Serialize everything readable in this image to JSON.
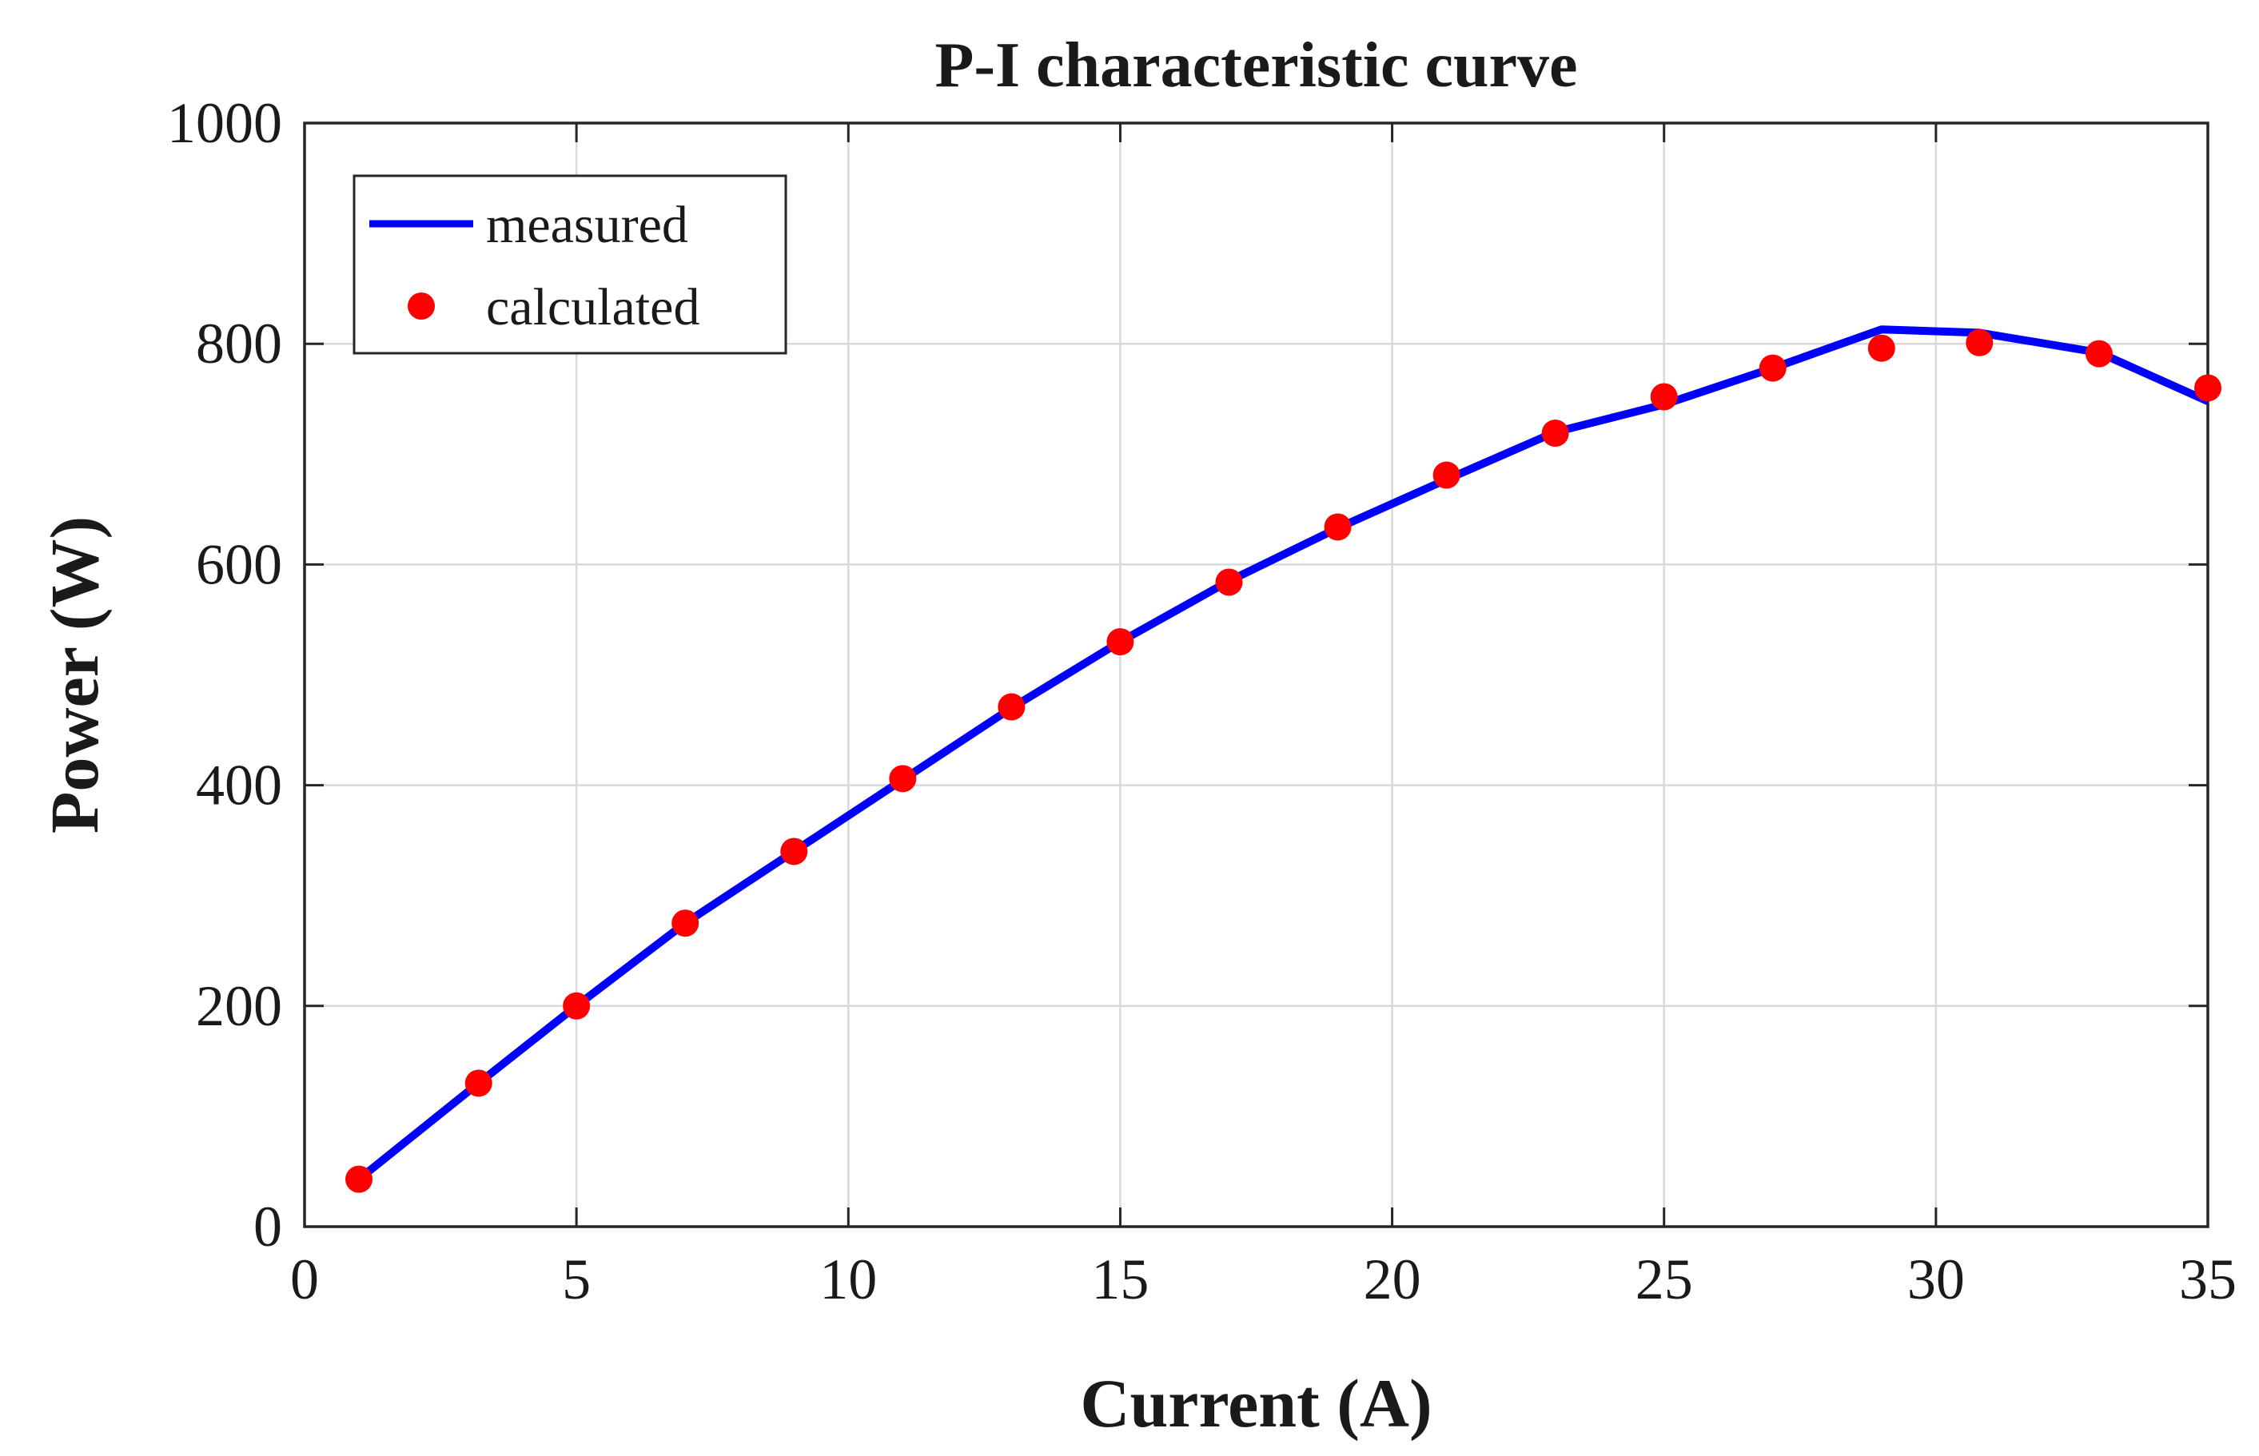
{
  "chart_data": {
    "type": "line",
    "title": "P-I characteristic curve",
    "xlabel": "Current (A)",
    "ylabel": "Power (W)",
    "xlim": [
      0,
      35
    ],
    "ylim": [
      0,
      1000
    ],
    "xticks": [
      0,
      5,
      10,
      15,
      20,
      25,
      30,
      35
    ],
    "yticks": [
      0,
      200,
      400,
      600,
      800,
      1000
    ],
    "grid": true,
    "legend_position": "top-left",
    "colors": {
      "measured": "#0000ff",
      "calculated": "#ff0000"
    },
    "series": [
      {
        "name": "measured",
        "style": "line",
        "x": [
          1,
          3.2,
          5,
          7,
          9,
          11,
          13,
          15,
          17,
          19,
          21,
          23,
          25,
          27,
          29,
          30.8,
          33,
          35
        ],
        "y": [
          43,
          130,
          200,
          275,
          340,
          405,
          470,
          530,
          585,
          633,
          677,
          720,
          745,
          778,
          813,
          810,
          792,
          748
        ]
      },
      {
        "name": "calculated",
        "style": "markers",
        "x": [
          1,
          3.2,
          5,
          7,
          9,
          11,
          13,
          15,
          17,
          19,
          21,
          23,
          25,
          27,
          29,
          30.8,
          33,
          35
        ],
        "y": [
          43,
          130,
          200,
          275,
          340,
          406,
          471,
          530,
          584,
          634,
          681,
          719,
          752,
          778,
          796,
          801,
          791,
          760
        ]
      }
    ]
  }
}
